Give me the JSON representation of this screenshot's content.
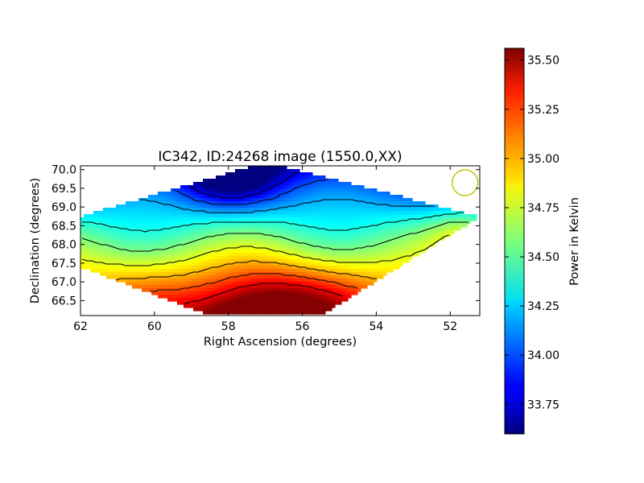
{
  "chart_data": {
    "type": "heatmap",
    "title": "IC342, ID:24268 image (1550.0,XX)",
    "xlabel": "Right Ascension (degrees)",
    "ylabel": "Declination (degrees)",
    "xlim": [
      62,
      51.2
    ],
    "ylim": [
      66.1,
      70.1
    ],
    "x_ticks": [
      "62",
      "60",
      "58",
      "56",
      "54",
      "52"
    ],
    "x_tick_values": [
      62,
      60,
      58,
      56,
      54,
      52
    ],
    "y_ticks": [
      "66.5",
      "67.0",
      "67.5",
      "68.0",
      "68.5",
      "69.0",
      "69.5",
      "70.0"
    ],
    "y_tick_values": [
      66.5,
      67.0,
      67.5,
      68.0,
      68.5,
      69.0,
      69.5,
      70.0
    ],
    "colorbar": {
      "label": "Power in Kelvin",
      "range": [
        33.6,
        35.56
      ],
      "ticks": [
        "33.75",
        "34.00",
        "34.25",
        "34.50",
        "34.75",
        "35.00",
        "35.25",
        "35.50"
      ],
      "tick_values": [
        33.75,
        34.0,
        34.25,
        34.5,
        34.75,
        35.0,
        35.25,
        35.5
      ],
      "colormap": "jet"
    },
    "map_region": {
      "shape": "diamond",
      "vertices_ra_dec": [
        [
          62,
          68.75
        ],
        [
          57,
          70.2
        ],
        [
          51.2,
          68.75
        ],
        [
          55.5,
          66.1
        ],
        [
          58.5,
          66.1
        ],
        [
          62,
          67.4
        ]
      ]
    },
    "field_description": {
      "min_value": 33.6,
      "min_location_ra_dec": [
        58.0,
        70.0
      ],
      "max_value": 35.55,
      "max_location_ra_dec": [
        57.0,
        66.1
      ]
    },
    "beam": {
      "ra": 51.6,
      "dec": 69.65,
      "color": "#bfbf00"
    },
    "contour_color": "#000000"
  }
}
